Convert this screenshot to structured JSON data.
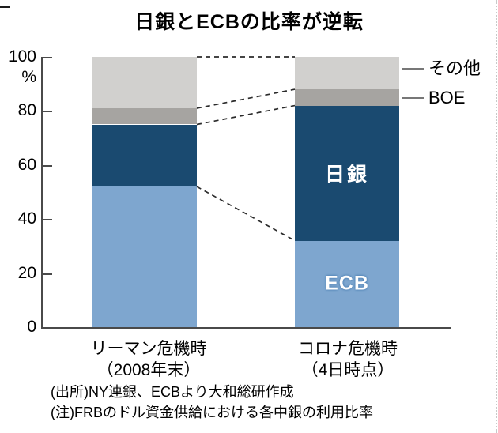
{
  "title": "日銀とECBの比率が逆転",
  "chart_data": {
    "type": "bar",
    "stacked": true,
    "title": "日銀とECBの比率が逆転",
    "unit_label": "%",
    "ylim": [
      0,
      100
    ],
    "yticks": [
      0,
      20,
      40,
      60,
      80,
      100
    ],
    "grid": false,
    "legend_position": "right-annotations",
    "categories": [
      {
        "label": "リーマン危機時",
        "sublabel": "（2008年末）"
      },
      {
        "label": "コロナ危機時",
        "sublabel": "（4日時点）"
      }
    ],
    "series": [
      {
        "name": "ECB",
        "color": "#7ea6cf",
        "values": [
          52,
          32
        ],
        "label_on_bar": 1
      },
      {
        "name": "日銀",
        "color": "#1a4a70",
        "values": [
          23,
          50
        ],
        "label_on_bar": 1
      },
      {
        "name": "BOE",
        "color": "#a6a4a1",
        "values": [
          6,
          6
        ]
      },
      {
        "name": "その他",
        "color": "#d1d0ce",
        "values": [
          19,
          12
        ]
      }
    ],
    "right_annotations": [
      {
        "series": "その他"
      },
      {
        "series": "BOE"
      }
    ],
    "connector_lines": "dashed lines join segment boundaries of the two bars (100 / top of BOE / top of 日銀 / top of ECB)"
  },
  "notes": {
    "source": "(出所)NY連銀、ECBより大和総研作成",
    "note": "(注)FRBのドル資金供給における各中銀の利用比率"
  }
}
